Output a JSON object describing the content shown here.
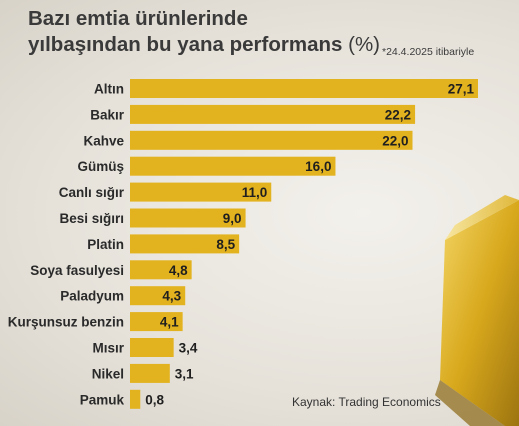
{
  "title_line1": "Bazı emtia ürünlerinde",
  "title_line2": "yılbaşından bu yana performans",
  "title_unit": "(%)",
  "note": "*24.4.2025 itibariyle",
  "source": "Kaynak: Trading Economics",
  "chart_data": {
    "type": "bar",
    "orientation": "horizontal",
    "categories": [
      "Altın",
      "Bakır",
      "Kahve",
      "Gümüş",
      "Canlı sığır",
      "Besi sığırı",
      "Platin",
      "Soya fasulyesi",
      "Paladyum",
      "Kurşunsuz benzin",
      "Mısır",
      "Nikel",
      "Pamuk"
    ],
    "values": [
      27.1,
      22.2,
      22.0,
      16.0,
      11.0,
      9.0,
      8.5,
      4.8,
      4.3,
      4.1,
      3.4,
      3.1,
      0.8
    ],
    "value_labels": [
      "27,1",
      "22,2",
      "22,0",
      "16,0",
      "11,0",
      "9,0",
      "8,5",
      "4,8",
      "4,3",
      "4,1",
      "3,4",
      "3,1",
      "0,8"
    ],
    "bar_color": "#e3b21f",
    "grid": false,
    "legend": "none"
  }
}
